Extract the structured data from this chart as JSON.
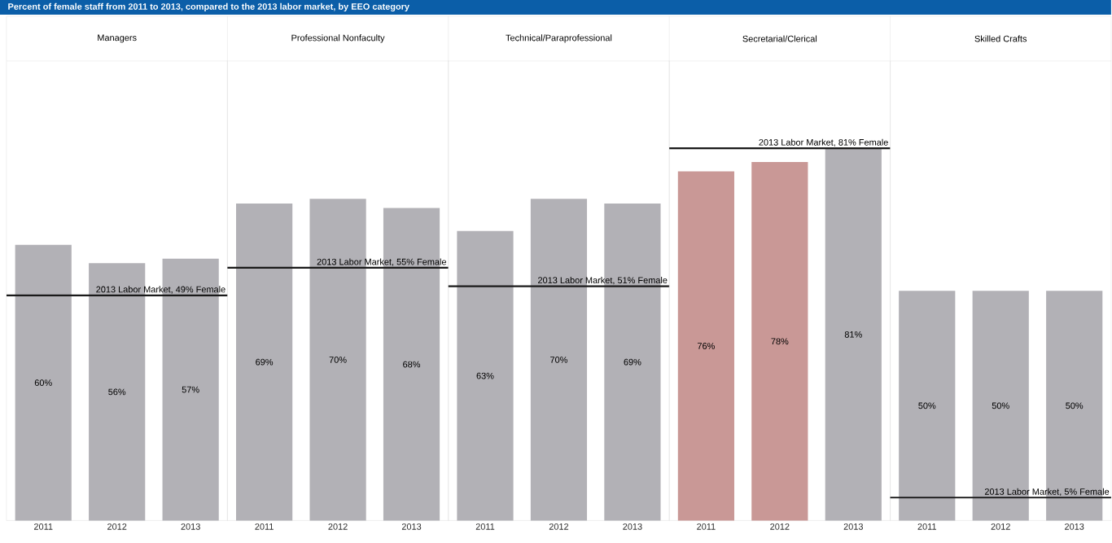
{
  "chart_data": [
    {
      "type": "bar",
      "title": "Managers",
      "annotations": [
        "Percent of female staff from 2011 to 2013, compared to the 2013 labor market, by EEO category"
      ],
      "categories": [
        "2011",
        "2012",
        "2013"
      ],
      "values": [
        60,
        56,
        57
      ],
      "value_labels": [
        "60%",
        "56%",
        "57%"
      ],
      "colors": [
        "#b2b1b6",
        "#b2b1b6",
        "#b2b1b6"
      ],
      "ylim": [
        0,
        100
      ],
      "tick_labels": "x",
      "ref_lines": [
        {
          "axis": "y",
          "value": 49,
          "label": "2013 Labor Market,  49% Female",
          "color": "#1a1a1a"
        }
      ]
    },
    {
      "type": "bar",
      "title": "Professional Nonfaculty",
      "categories": [
        "2011",
        "2012",
        "2013"
      ],
      "values": [
        69,
        70,
        68
      ],
      "value_labels": [
        "69%",
        "70%",
        "68%"
      ],
      "colors": [
        "#b2b1b6",
        "#b2b1b6",
        "#b2b1b6"
      ],
      "ylim": [
        0,
        100
      ],
      "tick_labels": "x",
      "ref_lines": [
        {
          "axis": "y",
          "value": 55,
          "label": "2013 Labor Market,  55% Female",
          "color": "#1a1a1a"
        }
      ]
    },
    {
      "type": "bar",
      "title": "Technical/Paraprofessional",
      "categories": [
        "2011",
        "2012",
        "2013"
      ],
      "values": [
        63,
        70,
        69
      ],
      "value_labels": [
        "63%",
        "70%",
        "69%"
      ],
      "colors": [
        "#b2b1b6",
        "#b2b1b6",
        "#b2b1b6"
      ],
      "ylim": [
        0,
        100
      ],
      "tick_labels": "x",
      "ref_lines": [
        {
          "axis": "y",
          "value": 51,
          "label": "2013 Labor Market,  51% Female",
          "color": "#1a1a1a"
        }
      ]
    },
    {
      "type": "bar",
      "title": "Secretarial/Clerical",
      "categories": [
        "2011",
        "2012",
        "2013"
      ],
      "values": [
        76,
        78,
        81
      ],
      "value_labels": [
        "76%",
        "78%",
        "81%"
      ],
      "colors": [
        "#c99896",
        "#c99896",
        "#b2b1b6"
      ],
      "ylim": [
        0,
        100
      ],
      "tick_labels": "x",
      "ref_lines": [
        {
          "axis": "y",
          "value": 81,
          "label": "2013 Labor Market,  81% Female",
          "color": "#1a1a1a"
        }
      ]
    },
    {
      "type": "bar",
      "title": "Skilled Crafts",
      "categories": [
        "2011",
        "2012",
        "2013"
      ],
      "values": [
        50,
        50,
        50
      ],
      "value_labels": [
        "50%",
        "50%",
        "50%"
      ],
      "colors": [
        "#b2b1b6",
        "#b2b1b6",
        "#b2b1b6"
      ],
      "ylim": [
        0,
        100
      ],
      "tick_labels": "x",
      "ref_lines": [
        {
          "axis": "y",
          "value": 5,
          "label": "2013 Labor Market,  5% Female",
          "color": "#1a1a1a"
        }
      ]
    }
  ]
}
